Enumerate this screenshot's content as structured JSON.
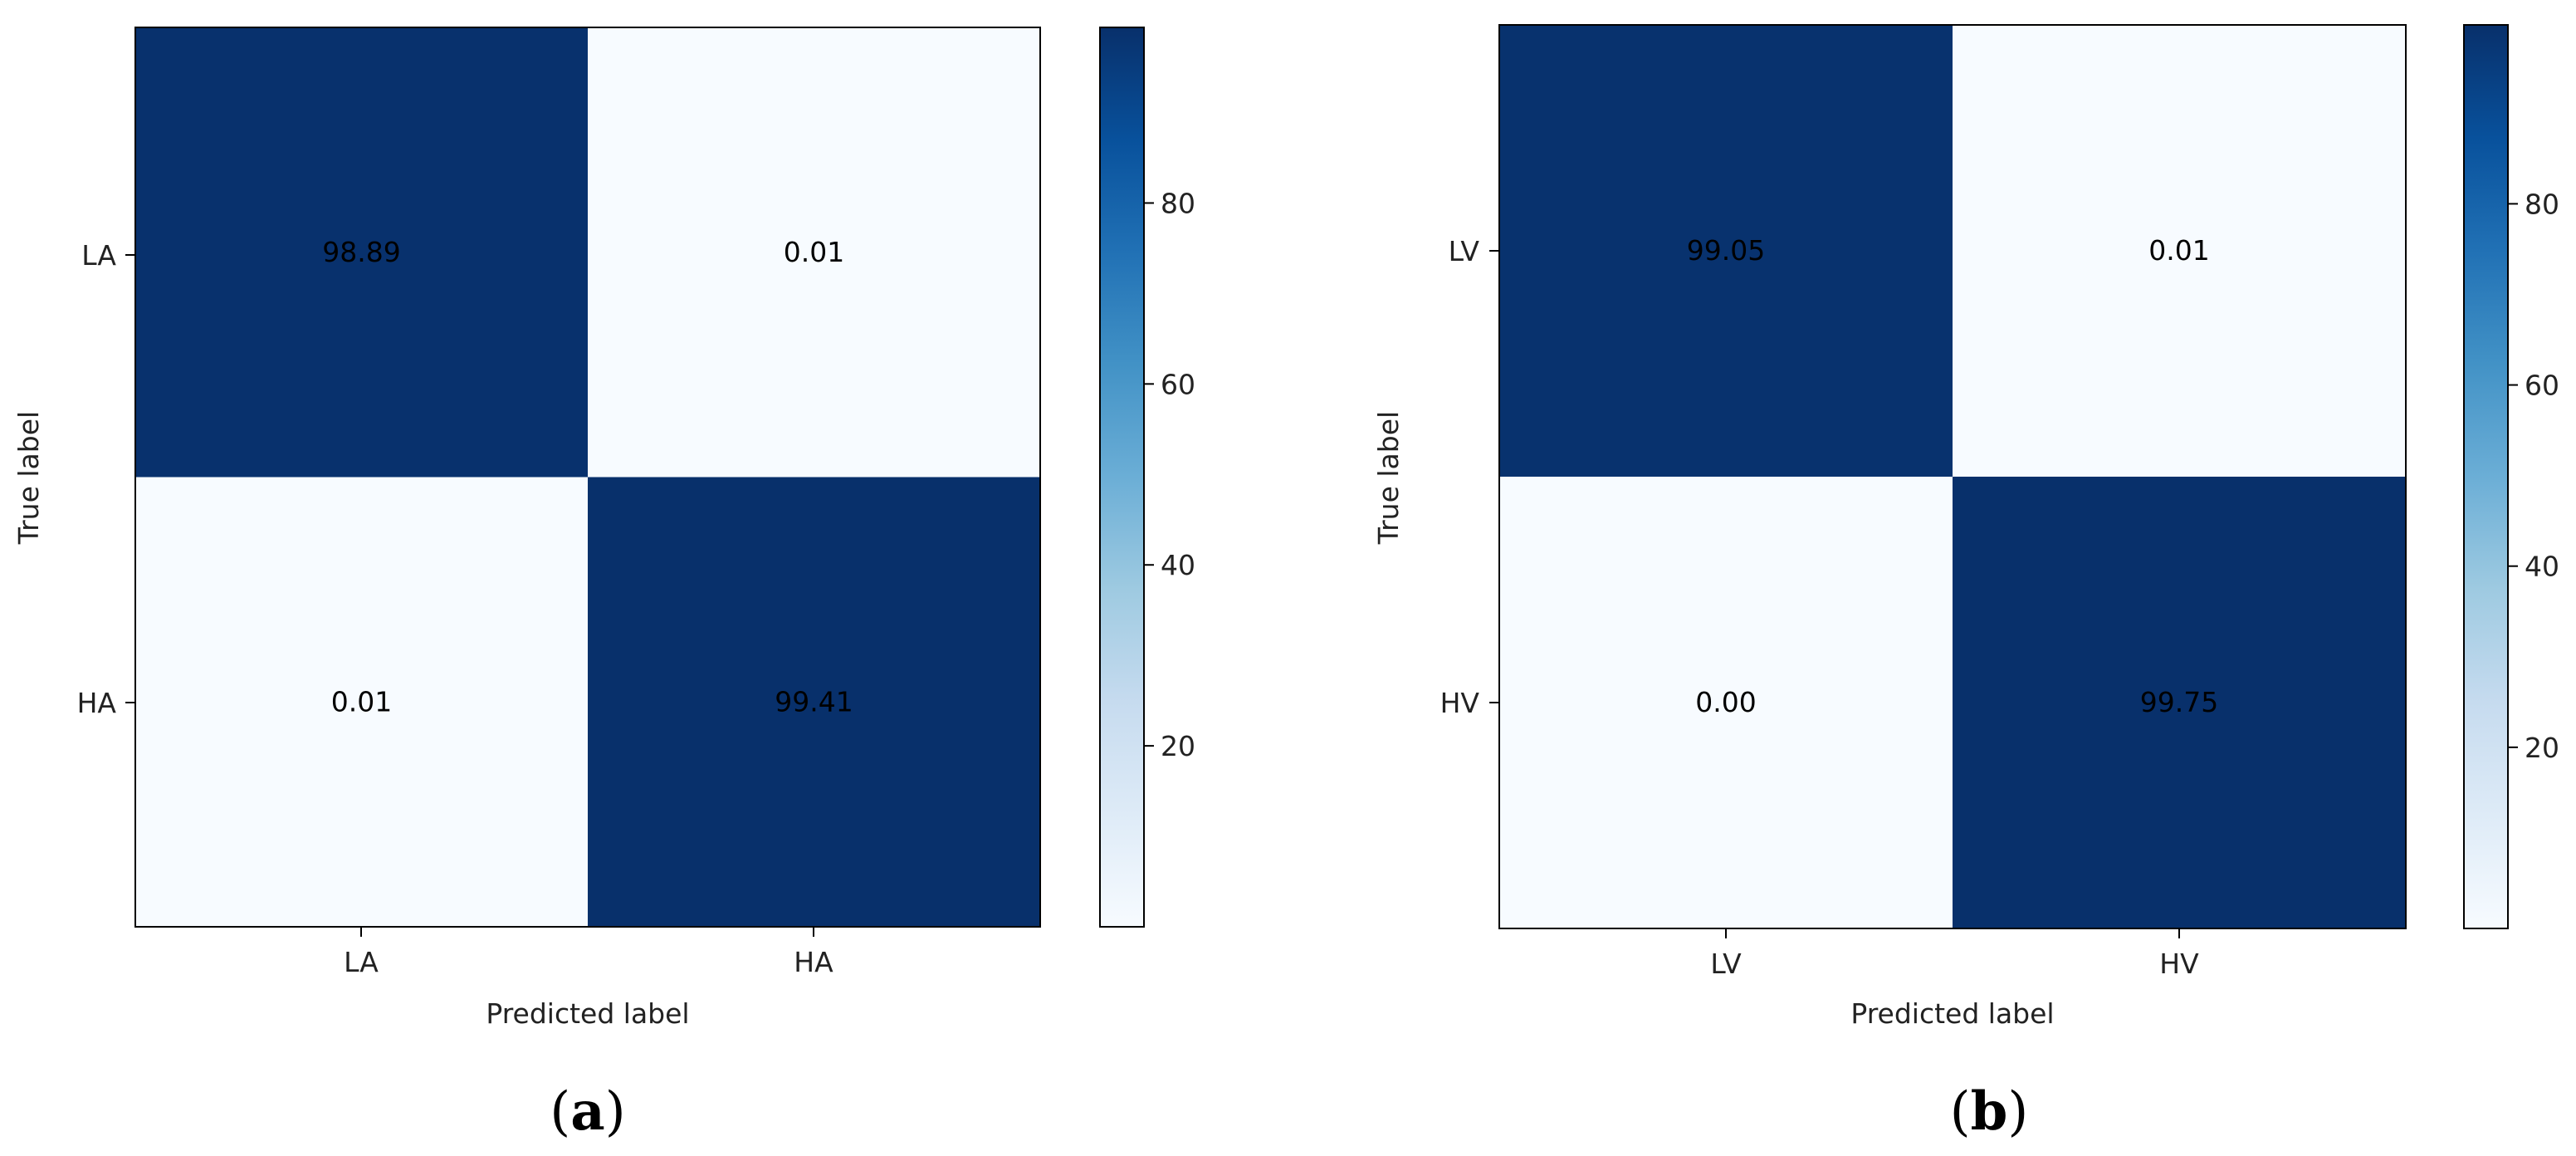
{
  "chart_data": [
    {
      "type": "heatmap",
      "caption": {
        "open": "(",
        "letter": "a",
        "close": ")"
      },
      "xlabel": "Predicted label",
      "ylabel": "True label",
      "x_categories": [
        "LA",
        "HA"
      ],
      "y_categories": [
        "LA",
        "HA"
      ],
      "values": [
        [
          98.89,
          0.01
        ],
        [
          0.01,
          99.41
        ]
      ],
      "colorbar": {
        "min": 0,
        "max": 99.41,
        "ticks": [
          20,
          40,
          60,
          80
        ]
      },
      "colormap": {
        "low": "#f7fbff",
        "high": "#08306b"
      }
    },
    {
      "type": "heatmap",
      "caption": {
        "open": "(",
        "letter": "b",
        "close": ")"
      },
      "xlabel": "Predicted label",
      "ylabel": "True label",
      "x_categories": [
        "LV",
        "HV"
      ],
      "y_categories": [
        "LV",
        "HV"
      ],
      "values": [
        [
          99.05,
          0.01
        ],
        [
          0.0,
          99.75
        ]
      ],
      "value_labels": [
        [
          "99.05",
          "0.01"
        ],
        [
          "0.00",
          "99.75"
        ]
      ],
      "colorbar": {
        "min": 0,
        "max": 99.75,
        "ticks": [
          20,
          40,
          60,
          80
        ]
      },
      "colormap": {
        "low": "#f7fbff",
        "high": "#08306b"
      }
    }
  ]
}
